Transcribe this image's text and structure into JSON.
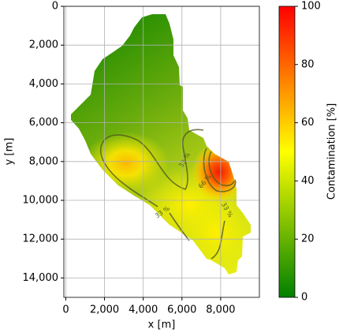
{
  "chart_data": {
    "type": "contour",
    "xlabel": "x [m]",
    "ylabel": "y [m]",
    "xlim": [
      -100,
      10000
    ],
    "ylim": [
      15000,
      0
    ],
    "xticks": [
      0,
      {
        "value": 2000,
        "label": "2,000"
      },
      {
        "value": 4000,
        "label": "4,000"
      },
      {
        "value": 6000,
        "label": "6,000"
      },
      {
        "value": 8000,
        "label": "8,000"
      }
    ],
    "yticks": [
      0,
      {
        "value": 2000,
        "label": "2,000"
      },
      {
        "value": 4000,
        "label": "4,000"
      },
      {
        "value": 6000,
        "label": "6,000"
      },
      {
        "value": 8000,
        "label": "8,000"
      },
      {
        "value": 10000,
        "label": "10,000"
      },
      {
        "value": 12000,
        "label": "12,000"
      },
      {
        "value": 14000,
        "label": "14,000"
      }
    ],
    "grid": true,
    "colorbar": {
      "label": "Contamination [%]",
      "lim": [
        0,
        100
      ],
      "ticks": [
        0,
        20,
        40,
        60,
        80,
        100
      ],
      "colors": [
        "#008000",
        "#ffff00",
        "#ff0000"
      ]
    },
    "contours": [
      {
        "value": 33,
        "label": "33 %"
      },
      {
        "value": 66,
        "label": "66 %"
      }
    ]
  }
}
